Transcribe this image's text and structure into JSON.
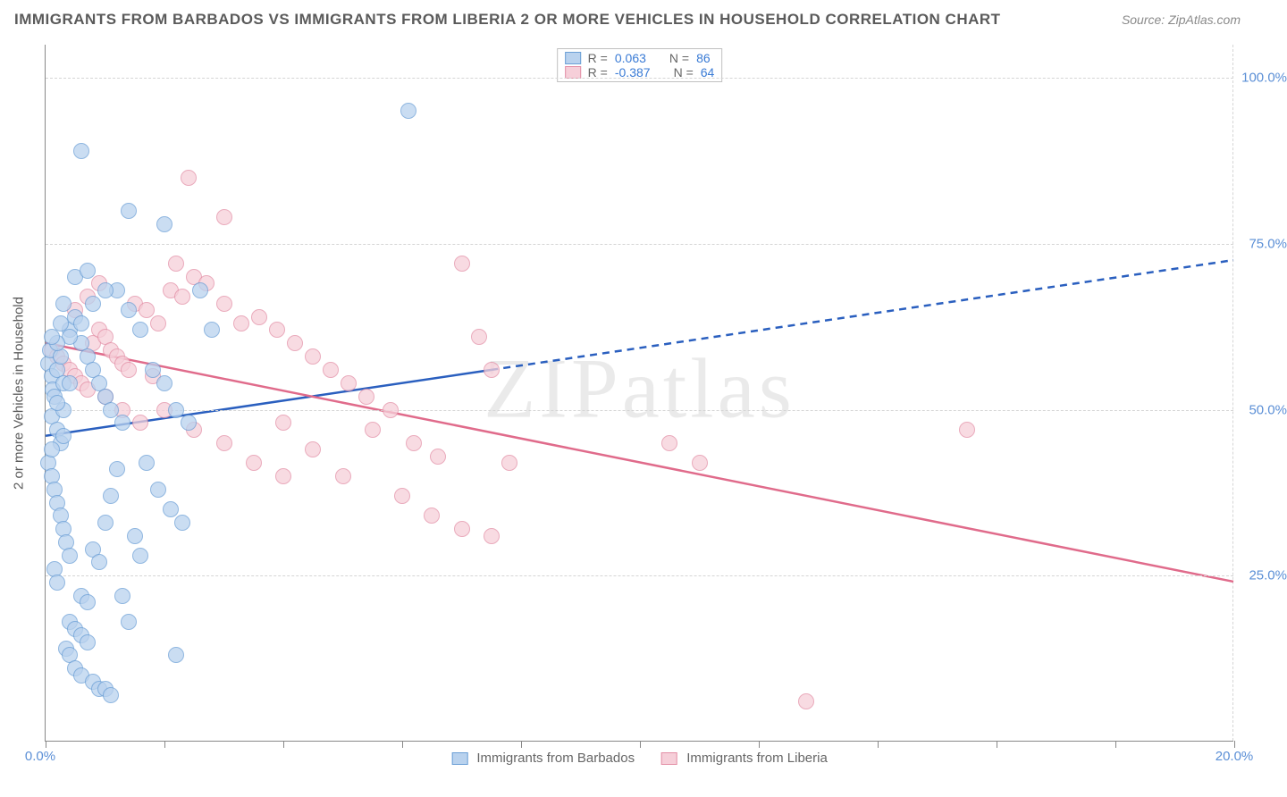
{
  "title": "IMMIGRANTS FROM BARBADOS VS IMMIGRANTS FROM LIBERIA 2 OR MORE VEHICLES IN HOUSEHOLD CORRELATION CHART",
  "source": "Source: ZipAtlas.com",
  "watermark": "ZIPatlas",
  "y_axis_title": "2 or more Vehicles in Household",
  "colors": {
    "series1_fill": "#b9d2ee",
    "series1_stroke": "#6b9fd6",
    "series2_fill": "#f6cfd9",
    "series2_stroke": "#e38fa6",
    "trend1": "#2a5fbf",
    "trend2": "#e06b8b",
    "tick_label": "#5b8fd6",
    "grid": "#d5d5d5",
    "axis": "#888888",
    "title_color": "#5a5a5a",
    "source_color": "#8a8a8a"
  },
  "x_axis": {
    "min": 0.0,
    "max": 20.0,
    "ticks": [
      0.0,
      2.0,
      4.0,
      6.0,
      8.0,
      10.0,
      12.0,
      14.0,
      16.0,
      18.0,
      20.0
    ],
    "label_left": "0.0%",
    "label_right": "20.0%"
  },
  "y_axis": {
    "min": 0.0,
    "max": 105.0,
    "grid_ticks": [
      25.0,
      50.0,
      75.0,
      100.0
    ],
    "labels": {
      "25.0": "25.0%",
      "50.0": "50.0%",
      "75.0": "75.0%",
      "100.0": "100.0%"
    }
  },
  "legend_top": {
    "rows": [
      {
        "r_label": "R =",
        "r_value": "0.063",
        "n_label": "N =",
        "n_value": "86",
        "series": 1
      },
      {
        "r_label": "R =",
        "r_value": "-0.387",
        "n_label": "N =",
        "n_value": "64",
        "series": 2
      }
    ]
  },
  "legend_bottom": {
    "series1_label": "Immigrants from Barbados",
    "series2_label": "Immigrants from Liberia"
  },
  "trend_lines": {
    "series1": {
      "x1": 0.0,
      "y1": 46.0,
      "x2": 20.0,
      "y2": 72.5,
      "solid_until_x": 7.5
    },
    "series2": {
      "x1": 0.0,
      "y1": 60.0,
      "x2": 20.0,
      "y2": 24.0,
      "solid_until_x": 20.0
    }
  },
  "series1_points": [
    [
      0.05,
      57
    ],
    [
      0.1,
      55
    ],
    [
      0.12,
      53
    ],
    [
      0.08,
      59
    ],
    [
      0.2,
      56
    ],
    [
      0.25,
      58
    ],
    [
      0.3,
      54
    ],
    [
      0.15,
      52
    ],
    [
      0.1,
      49
    ],
    [
      0.2,
      47
    ],
    [
      0.25,
      45
    ],
    [
      0.3,
      46
    ],
    [
      0.05,
      42
    ],
    [
      0.1,
      40
    ],
    [
      0.15,
      38
    ],
    [
      0.2,
      36
    ],
    [
      0.25,
      34
    ],
    [
      0.3,
      32
    ],
    [
      0.35,
      30
    ],
    [
      0.4,
      28
    ],
    [
      0.15,
      26
    ],
    [
      0.2,
      24
    ],
    [
      0.6,
      22
    ],
    [
      0.7,
      21
    ],
    [
      0.8,
      29
    ],
    [
      0.9,
      27
    ],
    [
      1.0,
      33
    ],
    [
      1.1,
      37
    ],
    [
      1.2,
      41
    ],
    [
      1.3,
      48
    ],
    [
      0.4,
      18
    ],
    [
      0.5,
      17
    ],
    [
      0.6,
      16
    ],
    [
      0.7,
      15
    ],
    [
      0.35,
      14
    ],
    [
      0.4,
      13
    ],
    [
      0.5,
      11
    ],
    [
      0.6,
      10
    ],
    [
      0.8,
      9
    ],
    [
      0.9,
      8
    ],
    [
      1.0,
      8
    ],
    [
      1.1,
      7
    ],
    [
      0.4,
      62
    ],
    [
      0.5,
      64
    ],
    [
      0.6,
      60
    ],
    [
      0.7,
      58
    ],
    [
      0.8,
      56
    ],
    [
      0.9,
      54
    ],
    [
      1.0,
      52
    ],
    [
      1.1,
      50
    ],
    [
      0.3,
      66
    ],
    [
      0.5,
      70
    ],
    [
      0.7,
      71
    ],
    [
      1.2,
      68
    ],
    [
      1.4,
      65
    ],
    [
      1.6,
      62
    ],
    [
      0.6,
      89
    ],
    [
      1.4,
      80
    ],
    [
      6.1,
      95
    ],
    [
      1.8,
      56
    ],
    [
      2.0,
      54
    ],
    [
      2.2,
      50
    ],
    [
      2.4,
      48
    ],
    [
      2.0,
      78
    ],
    [
      2.6,
      68
    ],
    [
      2.8,
      62
    ],
    [
      1.7,
      42
    ],
    [
      1.9,
      38
    ],
    [
      2.1,
      35
    ],
    [
      2.3,
      33
    ],
    [
      1.0,
      68
    ],
    [
      0.8,
      66
    ],
    [
      0.6,
      63
    ],
    [
      0.4,
      61
    ],
    [
      0.2,
      60
    ],
    [
      0.1,
      61
    ],
    [
      0.25,
      63
    ],
    [
      1.5,
      31
    ],
    [
      1.6,
      28
    ],
    [
      1.3,
      22
    ],
    [
      1.4,
      18
    ],
    [
      2.2,
      13
    ],
    [
      0.1,
      44
    ],
    [
      0.3,
      50
    ],
    [
      0.4,
      54
    ],
    [
      0.2,
      51
    ]
  ],
  "series2_points": [
    [
      0.1,
      59
    ],
    [
      0.2,
      58
    ],
    [
      0.3,
      57
    ],
    [
      0.4,
      56
    ],
    [
      0.5,
      55
    ],
    [
      0.6,
      54
    ],
    [
      0.7,
      53
    ],
    [
      0.8,
      60
    ],
    [
      0.9,
      62
    ],
    [
      1.0,
      61
    ],
    [
      1.1,
      59
    ],
    [
      1.2,
      58
    ],
    [
      1.3,
      57
    ],
    [
      1.4,
      56
    ],
    [
      1.5,
      66
    ],
    [
      1.7,
      65
    ],
    [
      1.9,
      63
    ],
    [
      2.1,
      68
    ],
    [
      2.3,
      67
    ],
    [
      2.5,
      70
    ],
    [
      2.7,
      69
    ],
    [
      3.0,
      66
    ],
    [
      3.3,
      63
    ],
    [
      3.6,
      64
    ],
    [
      3.9,
      62
    ],
    [
      4.2,
      60
    ],
    [
      4.5,
      58
    ],
    [
      4.8,
      56
    ],
    [
      5.1,
      54
    ],
    [
      5.4,
      52
    ],
    [
      5.8,
      50
    ],
    [
      6.2,
      45
    ],
    [
      6.6,
      43
    ],
    [
      7.0,
      72
    ],
    [
      7.3,
      61
    ],
    [
      7.5,
      56
    ],
    [
      7.8,
      42
    ],
    [
      4.0,
      48
    ],
    [
      4.5,
      44
    ],
    [
      5.0,
      40
    ],
    [
      5.5,
      47
    ],
    [
      6.0,
      37
    ],
    [
      6.5,
      34
    ],
    [
      7.0,
      32
    ],
    [
      7.5,
      31
    ],
    [
      2.0,
      50
    ],
    [
      2.5,
      47
    ],
    [
      3.0,
      45
    ],
    [
      3.5,
      42
    ],
    [
      4.0,
      40
    ],
    [
      2.4,
      85
    ],
    [
      3.0,
      79
    ],
    [
      2.2,
      72
    ],
    [
      1.8,
      55
    ],
    [
      1.0,
      52
    ],
    [
      1.3,
      50
    ],
    [
      1.6,
      48
    ],
    [
      10.5,
      45
    ],
    [
      11.0,
      42
    ],
    [
      15.5,
      47
    ],
    [
      12.8,
      6
    ],
    [
      0.5,
      65
    ],
    [
      0.7,
      67
    ],
    [
      0.9,
      69
    ]
  ]
}
